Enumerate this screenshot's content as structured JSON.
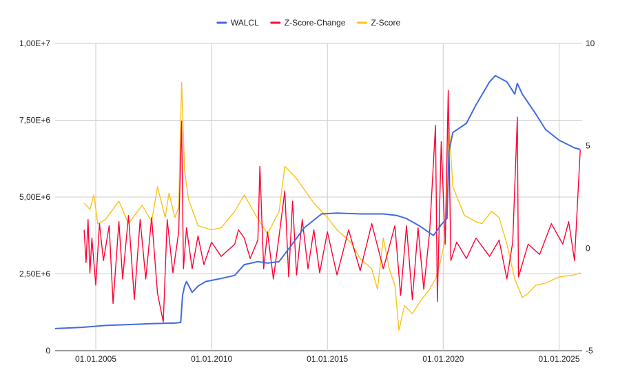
{
  "chart_data": {
    "type": "line",
    "title": "",
    "legend_position": "top",
    "grid": true,
    "x_axis": {
      "type": "date",
      "range": [
        "2003-04-01",
        "2025-12-31"
      ],
      "tick_values": [
        "2005-01-01",
        "2010-01-01",
        "2015-01-01",
        "2020-01-01",
        "2025-01-01"
      ],
      "tick_labels": [
        "01.01.2005",
        "01.01.2010",
        "01.01.2015",
        "01.01.2020",
        "01.01.2025"
      ]
    },
    "y_left": {
      "range": [
        0,
        10000000
      ],
      "ticks": [
        0,
        2500000,
        5000000,
        7500000,
        10000000
      ],
      "tick_labels": [
        "0",
        "2,50E+6",
        "5,00E+6",
        "7,50E+6",
        "1,00E+7"
      ]
    },
    "y_right": {
      "range": [
        -5,
        10
      ],
      "ticks": [
        -5,
        0,
        5,
        10
      ],
      "tick_labels": [
        "-5",
        "0",
        "5",
        "10"
      ]
    },
    "series": [
      {
        "name": "WALCL",
        "color": "#4169e1",
        "axis": "left",
        "points": [
          [
            "2003-04-01",
            720000
          ],
          [
            "2004-06-01",
            760000
          ],
          [
            "2005-06-01",
            820000
          ],
          [
            "2006-06-01",
            850000
          ],
          [
            "2007-06-01",
            880000
          ],
          [
            "2008-06-01",
            900000
          ],
          [
            "2008-09-01",
            920000
          ],
          [
            "2008-10-01",
            1800000
          ],
          [
            "2008-11-01",
            2100000
          ],
          [
            "2008-12-01",
            2250000
          ],
          [
            "2009-03-01",
            1900000
          ],
          [
            "2009-06-01",
            2100000
          ],
          [
            "2009-10-01",
            2250000
          ],
          [
            "2010-06-01",
            2350000
          ],
          [
            "2011-01-01",
            2450000
          ],
          [
            "2011-06-01",
            2800000
          ],
          [
            "2012-01-01",
            2900000
          ],
          [
            "2012-06-01",
            2850000
          ],
          [
            "2012-12-01",
            2900000
          ],
          [
            "2013-06-01",
            3400000
          ],
          [
            "2014-01-01",
            4000000
          ],
          [
            "2014-10-01",
            4450000
          ],
          [
            "2015-06-01",
            4480000
          ],
          [
            "2016-06-01",
            4450000
          ],
          [
            "2017-06-01",
            4450000
          ],
          [
            "2018-01-01",
            4400000
          ],
          [
            "2018-06-01",
            4300000
          ],
          [
            "2019-01-01",
            4050000
          ],
          [
            "2019-08-01",
            3750000
          ],
          [
            "2019-12-01",
            4100000
          ],
          [
            "2020-03-01",
            4300000
          ],
          [
            "2020-04-01",
            6500000
          ],
          [
            "2020-06-01",
            7100000
          ],
          [
            "2021-01-01",
            7400000
          ],
          [
            "2021-06-01",
            8000000
          ],
          [
            "2022-01-01",
            8750000
          ],
          [
            "2022-04-01",
            8950000
          ],
          [
            "2022-10-01",
            8750000
          ],
          [
            "2023-02-01",
            8350000
          ],
          [
            "2023-03-15",
            8700000
          ],
          [
            "2023-06-01",
            8350000
          ],
          [
            "2024-01-01",
            7700000
          ],
          [
            "2024-06-01",
            7200000
          ],
          [
            "2025-01-01",
            6850000
          ],
          [
            "2025-09-01",
            6600000
          ],
          [
            "2025-12-01",
            6550000
          ]
        ]
      },
      {
        "name": "Z-Score-Change",
        "color": "#ff0033",
        "axis": "right",
        "points": [
          [
            "2004-07-01",
            0.9
          ],
          [
            "2004-08-01",
            -0.7
          ],
          [
            "2004-09-01",
            1.4
          ],
          [
            "2004-10-01",
            -1.2
          ],
          [
            "2004-11-01",
            0.5
          ],
          [
            "2005-01-01",
            -1.8
          ],
          [
            "2005-03-01",
            1.2
          ],
          [
            "2005-05-01",
            -0.6
          ],
          [
            "2005-08-01",
            1.1
          ],
          [
            "2005-10-01",
            -2.7
          ],
          [
            "2006-01-01",
            1.3
          ],
          [
            "2006-03-01",
            -1.5
          ],
          [
            "2006-06-01",
            1.6
          ],
          [
            "2006-09-01",
            -2.5
          ],
          [
            "2006-12-01",
            1.4
          ],
          [
            "2007-03-01",
            -1.5
          ],
          [
            "2007-06-01",
            1.5
          ],
          [
            "2007-09-01",
            -2.2
          ],
          [
            "2007-12-01",
            -3.6
          ],
          [
            "2008-02-01",
            1.4
          ],
          [
            "2008-05-01",
            -1.2
          ],
          [
            "2008-08-01",
            0.8
          ],
          [
            "2008-09-15",
            6.2
          ],
          [
            "2008-10-15",
            -1.0
          ],
          [
            "2008-12-01",
            1.0
          ],
          [
            "2009-03-01",
            -1.0
          ],
          [
            "2009-06-01",
            0.6
          ],
          [
            "2009-09-01",
            -0.8
          ],
          [
            "2010-01-01",
            0.3
          ],
          [
            "2010-06-01",
            -0.4
          ],
          [
            "2011-01-01",
            0.2
          ],
          [
            "2011-03-01",
            0.9
          ],
          [
            "2011-06-01",
            0.5
          ],
          [
            "2011-09-01",
            -0.5
          ],
          [
            "2012-01-01",
            0.4
          ],
          [
            "2012-02-01",
            4.0
          ],
          [
            "2012-04-01",
            -1.0
          ],
          [
            "2012-06-01",
            0.8
          ],
          [
            "2012-09-01",
            -1.5
          ],
          [
            "2012-12-01",
            0.6
          ],
          [
            "2013-03-01",
            2.8
          ],
          [
            "2013-05-01",
            -1.4
          ],
          [
            "2013-07-01",
            2.3
          ],
          [
            "2013-09-01",
            -1.3
          ],
          [
            "2013-12-01",
            1.4
          ],
          [
            "2014-03-01",
            -1.0
          ],
          [
            "2014-06-01",
            0.9
          ],
          [
            "2014-09-01",
            -1.2
          ],
          [
            "2015-01-01",
            0.8
          ],
          [
            "2015-06-01",
            -1.3
          ],
          [
            "2015-12-01",
            0.9
          ],
          [
            "2016-06-01",
            -1.1
          ],
          [
            "2016-12-01",
            1.2
          ],
          [
            "2017-06-01",
            -1.0
          ],
          [
            "2017-12-01",
            1.1
          ],
          [
            "2018-03-01",
            -2.3
          ],
          [
            "2018-06-01",
            1.1
          ],
          [
            "2018-09-01",
            -2.5
          ],
          [
            "2018-12-01",
            1.0
          ],
          [
            "2019-03-01",
            -2.0
          ],
          [
            "2019-06-01",
            0.8
          ],
          [
            "2019-09-01",
            6.0
          ],
          [
            "2019-10-01",
            -2.6
          ],
          [
            "2019-12-01",
            5.2
          ],
          [
            "2020-02-01",
            0.2
          ],
          [
            "2020-03-20",
            7.7
          ],
          [
            "2020-05-01",
            -0.6
          ],
          [
            "2020-08-01",
            0.3
          ],
          [
            "2021-01-01",
            -0.5
          ],
          [
            "2021-06-01",
            0.5
          ],
          [
            "2022-01-01",
            -0.4
          ],
          [
            "2022-06-01",
            0.4
          ],
          [
            "2022-10-01",
            -1.5
          ],
          [
            "2023-01-01",
            0.3
          ],
          [
            "2023-03-15",
            6.4
          ],
          [
            "2023-04-01",
            -1.4
          ],
          [
            "2023-09-01",
            0.2
          ],
          [
            "2024-03-01",
            -0.3
          ],
          [
            "2024-09-01",
            1.2
          ],
          [
            "2025-03-01",
            0.2
          ],
          [
            "2025-06-01",
            1.3
          ],
          [
            "2025-09-01",
            -0.6
          ],
          [
            "2025-12-01",
            4.8
          ]
        ]
      },
      {
        "name": "Z-Score",
        "color": "#f9c31a",
        "axis": "right",
        "points": [
          [
            "2004-07-01",
            2.2
          ],
          [
            "2004-10-01",
            1.9
          ],
          [
            "2004-12-01",
            2.6
          ],
          [
            "2005-02-01",
            1.2
          ],
          [
            "2005-06-01",
            1.4
          ],
          [
            "2006-01-01",
            2.3
          ],
          [
            "2006-06-01",
            1.2
          ],
          [
            "2007-01-01",
            2.1
          ],
          [
            "2007-06-01",
            1.3
          ],
          [
            "2007-09-01",
            3.0
          ],
          [
            "2008-01-01",
            1.5
          ],
          [
            "2008-03-01",
            2.7
          ],
          [
            "2008-06-01",
            1.5
          ],
          [
            "2008-08-01",
            2.0
          ],
          [
            "2008-09-15",
            8.1
          ],
          [
            "2008-11-01",
            3.8
          ],
          [
            "2009-01-01",
            2.4
          ],
          [
            "2009-06-01",
            1.1
          ],
          [
            "2010-01-01",
            0.9
          ],
          [
            "2010-06-01",
            1.0
          ],
          [
            "2011-01-01",
            1.8
          ],
          [
            "2011-06-01",
            2.6
          ],
          [
            "2011-12-01",
            1.6
          ],
          [
            "2012-06-01",
            0.7
          ],
          [
            "2012-12-01",
            1.8
          ],
          [
            "2013-03-01",
            4.0
          ],
          [
            "2013-09-01",
            3.4
          ],
          [
            "2014-06-01",
            2.2
          ],
          [
            "2015-01-01",
            1.5
          ],
          [
            "2015-06-01",
            0.9
          ],
          [
            "2016-01-01",
            0.3
          ],
          [
            "2016-06-01",
            -0.5
          ],
          [
            "2016-12-01",
            -1.0
          ],
          [
            "2017-03-01",
            -2.0
          ],
          [
            "2017-06-01",
            0.5
          ],
          [
            "2017-09-01",
            -1.0
          ],
          [
            "2017-12-01",
            -1.8
          ],
          [
            "2018-02-01",
            -4.0
          ],
          [
            "2018-05-01",
            -2.8
          ],
          [
            "2018-09-01",
            -3.2
          ],
          [
            "2019-01-01",
            -2.6
          ],
          [
            "2019-06-01",
            -2.0
          ],
          [
            "2019-09-01",
            -1.5
          ],
          [
            "2019-12-01",
            -0.5
          ],
          [
            "2020-02-01",
            0.5
          ],
          [
            "2020-04-01",
            6.1
          ],
          [
            "2020-06-01",
            3.0
          ],
          [
            "2020-12-01",
            1.6
          ],
          [
            "2021-06-01",
            1.3
          ],
          [
            "2021-09-01",
            1.2
          ],
          [
            "2022-02-01",
            1.8
          ],
          [
            "2022-06-01",
            1.5
          ],
          [
            "2022-10-01",
            0.2
          ],
          [
            "2023-02-01",
            -1.5
          ],
          [
            "2023-06-01",
            -2.4
          ],
          [
            "2023-09-01",
            -2.2
          ],
          [
            "2024-01-01",
            -1.8
          ],
          [
            "2024-06-01",
            -1.7
          ],
          [
            "2025-01-01",
            -1.4
          ],
          [
            "2025-09-01",
            -1.3
          ],
          [
            "2025-12-01",
            -1.2
          ]
        ]
      }
    ]
  }
}
